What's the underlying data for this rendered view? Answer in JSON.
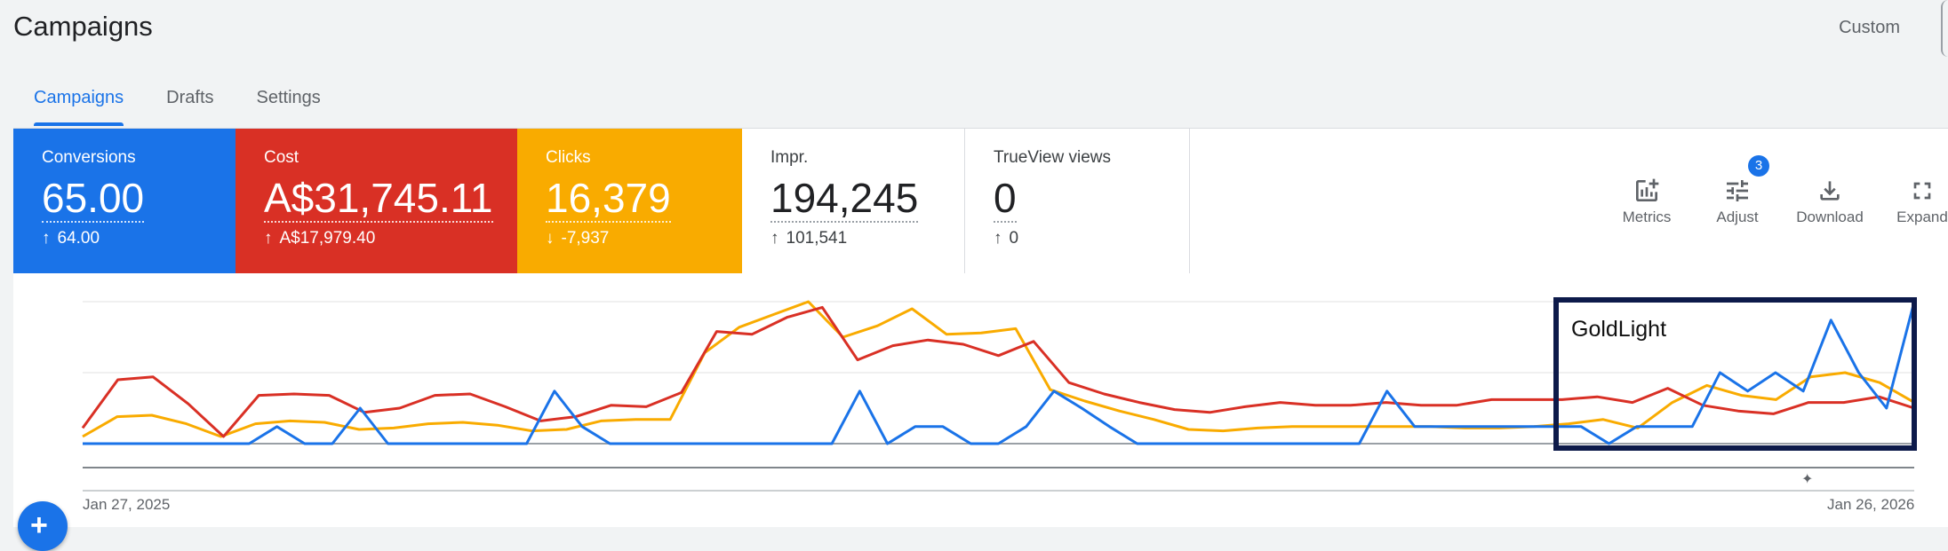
{
  "page": {
    "title": "Campaigns",
    "date_range_label": "Custom"
  },
  "tabs": [
    {
      "label": "Campaigns",
      "active": true
    },
    {
      "label": "Drafts",
      "active": false
    },
    {
      "label": "Settings",
      "active": false
    }
  ],
  "metrics": [
    {
      "label": "Conversions",
      "value": "65.00",
      "delta": "64.00",
      "direction": "up",
      "color": "#1a73e8"
    },
    {
      "label": "Cost",
      "value": "A$31,745.11",
      "delta": "A$17,979.40",
      "direction": "up",
      "color": "#d93025"
    },
    {
      "label": "Clicks",
      "value": "16,379",
      "delta": "-7,937",
      "direction": "down",
      "color": "#f9ab00"
    },
    {
      "label": "Impr.",
      "value": "194,245",
      "delta": "101,541",
      "direction": "up",
      "color": "#ffffff"
    },
    {
      "label": "TrueView views",
      "value": "0",
      "delta": "0",
      "direction": "up",
      "color": "#ffffff"
    }
  ],
  "toolbar": {
    "metrics_label": "Metrics",
    "adjust_label": "Adjust",
    "adjust_badge": "3",
    "download_label": "Download",
    "expand_label": "Expand"
  },
  "chart_data": {
    "type": "line",
    "x_start_label": "Jan 27, 2025",
    "x_end_label": "Jan 26, 2026",
    "grid": true,
    "annotation": {
      "text": "GoldLight",
      "border_color": "#0d1a4a"
    },
    "series": [
      {
        "name": "Conversions",
        "color": "#1a73e8",
        "values": [
          0,
          0,
          0,
          0,
          0,
          0,
          0,
          0.12,
          0,
          0,
          0.25,
          0,
          0,
          0,
          0,
          0,
          0,
          0.37,
          0.12,
          0,
          0,
          0,
          0,
          0,
          0,
          0,
          0,
          0,
          0.37,
          0,
          0.12,
          0.12,
          0,
          0,
          0.12,
          0.37,
          0.25,
          0.12,
          0,
          0,
          0,
          0,
          0,
          0,
          0,
          0,
          0,
          0.37,
          0.12,
          0.12,
          0.12,
          0.12,
          0.12,
          0.12,
          0.12,
          0,
          0.12,
          0.12,
          0.12,
          0.5,
          0.37,
          0.5,
          0.37,
          0.87,
          0.5,
          0.25,
          1.0
        ]
      },
      {
        "name": "Cost",
        "color": "#d93025",
        "values": [
          0.11,
          0.45,
          0.47,
          0.28,
          0.05,
          0.34,
          0.35,
          0.34,
          0.22,
          0.25,
          0.34,
          0.35,
          0.26,
          0.16,
          0.19,
          0.27,
          0.26,
          0.36,
          0.79,
          0.77,
          0.89,
          0.96,
          0.59,
          0.69,
          0.73,
          0.7,
          0.62,
          0.72,
          0.43,
          0.35,
          0.29,
          0.24,
          0.22,
          0.26,
          0.29,
          0.27,
          0.27,
          0.29,
          0.27,
          0.27,
          0.31,
          0.31,
          0.31,
          0.33,
          0.29,
          0.39,
          0.27,
          0.23,
          0.21,
          0.29,
          0.29,
          0.33,
          0.25
        ]
      },
      {
        "name": "Clicks",
        "color": "#f9ab00",
        "values": [
          0.05,
          0.19,
          0.2,
          0.14,
          0.05,
          0.14,
          0.16,
          0.15,
          0.1,
          0.11,
          0.14,
          0.15,
          0.13,
          0.09,
          0.1,
          0.16,
          0.17,
          0.17,
          0.64,
          0.82,
          0.91,
          1.0,
          0.75,
          0.83,
          0.95,
          0.77,
          0.78,
          0.81,
          0.38,
          0.3,
          0.23,
          0.17,
          0.1,
          0.09,
          0.11,
          0.12,
          0.12,
          0.12,
          0.12,
          0.12,
          0.11,
          0.11,
          0.12,
          0.14,
          0.17,
          0.11,
          0.29,
          0.41,
          0.34,
          0.31,
          0.47,
          0.5,
          0.43,
          0.29
        ]
      }
    ]
  }
}
